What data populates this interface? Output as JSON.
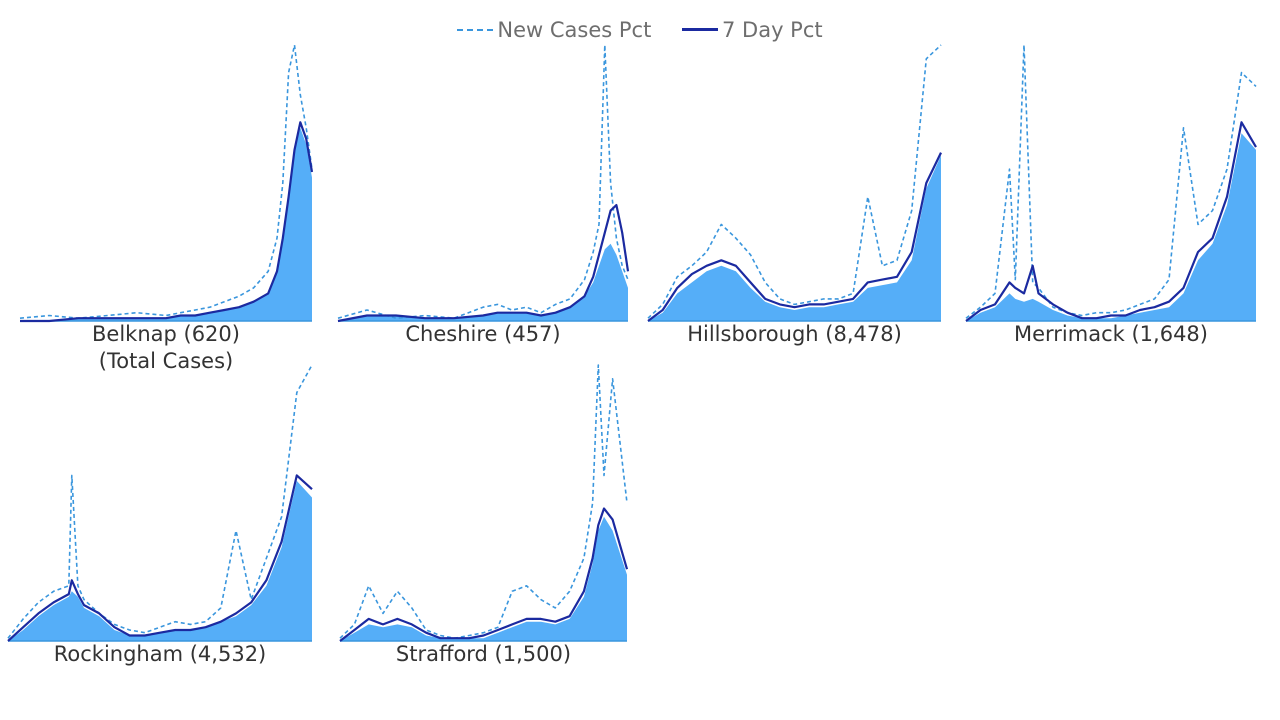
{
  "legend": {
    "new_cases_label": "New Cases Pct",
    "seven_day_label": "7 Day Pct"
  },
  "colors": {
    "area": "#55aef8",
    "new_cases_line": "#3a96dd",
    "seven_day_line": "#1b2aa0"
  },
  "chart_data": [
    {
      "type": "area",
      "county": "Belknap (620)",
      "subtitle": "(Total Cases)",
      "title": "",
      "xlabel": "",
      "ylabel": "",
      "x": [
        0,
        10,
        20,
        30,
        40,
        50,
        55,
        60,
        65,
        70,
        75,
        80,
        85,
        88,
        90,
        92,
        94,
        96,
        98,
        100
      ],
      "series": [
        {
          "name": "New Cases Pct",
          "values": [
            0.01,
            0.02,
            0.01,
            0.02,
            0.03,
            0.02,
            0.03,
            0.04,
            0.05,
            0.07,
            0.09,
            0.12,
            0.18,
            0.3,
            0.5,
            0.9,
            1.0,
            0.82,
            0.7,
            0.55
          ]
        },
        {
          "name": "7 Day Pct",
          "values": [
            0.0,
            0.0,
            0.01,
            0.01,
            0.01,
            0.01,
            0.02,
            0.02,
            0.03,
            0.04,
            0.05,
            0.07,
            0.1,
            0.18,
            0.3,
            0.45,
            0.62,
            0.72,
            0.66,
            0.54
          ]
        }
      ],
      "area_values": [
        0.0,
        0.0,
        0.01,
        0.01,
        0.01,
        0.01,
        0.02,
        0.02,
        0.03,
        0.04,
        0.05,
        0.07,
        0.1,
        0.18,
        0.3,
        0.45,
        0.62,
        0.7,
        0.64,
        0.52
      ],
      "ylim": [
        0,
        1
      ]
    },
    {
      "type": "area",
      "county": "Cheshire (457)",
      "title": "",
      "xlabel": "",
      "ylabel": "",
      "x": [
        0,
        10,
        20,
        30,
        40,
        50,
        55,
        60,
        65,
        70,
        75,
        80,
        85,
        88,
        90,
        92,
        94,
        96,
        98,
        100
      ],
      "series": [
        {
          "name": "New Cases Pct",
          "values": [
            0.01,
            0.04,
            0.01,
            0.02,
            0.01,
            0.05,
            0.06,
            0.04,
            0.05,
            0.03,
            0.06,
            0.08,
            0.15,
            0.25,
            0.35,
            1.0,
            0.5,
            0.3,
            0.2,
            0.15
          ]
        },
        {
          "name": "7 Day Pct",
          "values": [
            0.0,
            0.02,
            0.02,
            0.01,
            0.01,
            0.02,
            0.03,
            0.03,
            0.03,
            0.02,
            0.03,
            0.05,
            0.09,
            0.16,
            0.24,
            0.32,
            0.4,
            0.42,
            0.32,
            0.18
          ]
        }
      ],
      "area_values": [
        0.0,
        0.02,
        0.02,
        0.01,
        0.01,
        0.02,
        0.03,
        0.03,
        0.03,
        0.02,
        0.03,
        0.05,
        0.09,
        0.14,
        0.2,
        0.26,
        0.28,
        0.24,
        0.18,
        0.12
      ],
      "ylim": [
        0,
        1
      ]
    },
    {
      "type": "area",
      "county": "Hillsborough (8,478)",
      "title": "",
      "xlabel": "",
      "ylabel": "",
      "x": [
        0,
        5,
        10,
        15,
        20,
        25,
        30,
        35,
        40,
        45,
        50,
        55,
        60,
        65,
        70,
        75,
        80,
        85,
        90,
        95,
        100
      ],
      "series": [
        {
          "name": "New Cases Pct",
          "values": [
            0.01,
            0.06,
            0.16,
            0.2,
            0.25,
            0.35,
            0.3,
            0.24,
            0.14,
            0.08,
            0.06,
            0.07,
            0.08,
            0.08,
            0.1,
            0.45,
            0.2,
            0.22,
            0.4,
            0.95,
            1.0
          ]
        },
        {
          "name": "7 Day Pct",
          "values": [
            0.0,
            0.04,
            0.12,
            0.17,
            0.2,
            0.22,
            0.2,
            0.14,
            0.08,
            0.06,
            0.05,
            0.06,
            0.06,
            0.07,
            0.08,
            0.14,
            0.15,
            0.16,
            0.25,
            0.5,
            0.61
          ]
        }
      ],
      "area_values": [
        0.0,
        0.03,
        0.1,
        0.14,
        0.18,
        0.2,
        0.18,
        0.12,
        0.07,
        0.05,
        0.04,
        0.05,
        0.05,
        0.06,
        0.07,
        0.12,
        0.13,
        0.14,
        0.22,
        0.48,
        0.6
      ],
      "ylim": [
        0,
        1
      ]
    },
    {
      "type": "area",
      "county": "Merrimack (1,648)",
      "title": "",
      "xlabel": "",
      "ylabel": "",
      "x": [
        0,
        5,
        10,
        15,
        17,
        20,
        23,
        25,
        30,
        35,
        40,
        45,
        50,
        55,
        60,
        65,
        70,
        75,
        80,
        85,
        90,
        95,
        100
      ],
      "series": [
        {
          "name": "New Cases Pct",
          "values": [
            0.01,
            0.05,
            0.1,
            0.55,
            0.15,
            1.0,
            0.14,
            0.12,
            0.05,
            0.03,
            0.02,
            0.03,
            0.03,
            0.04,
            0.06,
            0.08,
            0.15,
            0.7,
            0.35,
            0.4,
            0.55,
            0.9,
            0.85
          ]
        },
        {
          "name": "7 Day Pct",
          "values": [
            0.0,
            0.04,
            0.06,
            0.14,
            0.12,
            0.1,
            0.2,
            0.1,
            0.06,
            0.03,
            0.01,
            0.01,
            0.02,
            0.02,
            0.04,
            0.05,
            0.07,
            0.12,
            0.25,
            0.3,
            0.45,
            0.72,
            0.63
          ]
        }
      ],
      "area_values": [
        0.0,
        0.03,
        0.05,
        0.1,
        0.08,
        0.07,
        0.08,
        0.07,
        0.04,
        0.02,
        0.01,
        0.01,
        0.01,
        0.02,
        0.03,
        0.04,
        0.05,
        0.1,
        0.22,
        0.28,
        0.42,
        0.68,
        0.62
      ],
      "ylim": [
        0,
        1
      ]
    },
    {
      "type": "area",
      "county": "Rockingham (4,532)",
      "title": "",
      "xlabel": "",
      "ylabel": "",
      "x": [
        0,
        5,
        10,
        15,
        20,
        21,
        23,
        25,
        30,
        35,
        40,
        45,
        50,
        55,
        60,
        65,
        70,
        75,
        80,
        85,
        90,
        95,
        100
      ],
      "series": [
        {
          "name": "New Cases Pct",
          "values": [
            0.01,
            0.08,
            0.14,
            0.18,
            0.2,
            0.6,
            0.2,
            0.15,
            0.1,
            0.06,
            0.04,
            0.03,
            0.05,
            0.07,
            0.06,
            0.07,
            0.12,
            0.4,
            0.15,
            0.3,
            0.45,
            0.9,
            1.0
          ]
        },
        {
          "name": "7 Day Pct",
          "values": [
            0.0,
            0.05,
            0.1,
            0.14,
            0.17,
            0.22,
            0.17,
            0.13,
            0.1,
            0.05,
            0.02,
            0.02,
            0.03,
            0.04,
            0.04,
            0.05,
            0.07,
            0.1,
            0.14,
            0.22,
            0.36,
            0.6,
            0.55
          ]
        }
      ],
      "area_values": [
        0.0,
        0.04,
        0.09,
        0.13,
        0.16,
        0.18,
        0.16,
        0.12,
        0.09,
        0.04,
        0.02,
        0.02,
        0.03,
        0.04,
        0.04,
        0.05,
        0.07,
        0.09,
        0.13,
        0.2,
        0.34,
        0.58,
        0.52
      ],
      "ylim": [
        0,
        1
      ]
    },
    {
      "type": "area",
      "county": "Strafford (1,500)",
      "title": "",
      "xlabel": "",
      "ylabel": "",
      "x": [
        0,
        5,
        10,
        15,
        20,
        25,
        30,
        35,
        40,
        45,
        50,
        55,
        60,
        65,
        70,
        75,
        80,
        85,
        88,
        90,
        92,
        95,
        100
      ],
      "series": [
        {
          "name": "New Cases Pct",
          "values": [
            0.01,
            0.06,
            0.2,
            0.1,
            0.18,
            0.12,
            0.04,
            0.02,
            0.01,
            0.02,
            0.03,
            0.05,
            0.18,
            0.2,
            0.15,
            0.12,
            0.18,
            0.3,
            0.5,
            1.0,
            0.6,
            0.95,
            0.5
          ]
        },
        {
          "name": "7 Day Pct",
          "values": [
            0.0,
            0.04,
            0.08,
            0.06,
            0.08,
            0.06,
            0.03,
            0.01,
            0.01,
            0.01,
            0.02,
            0.04,
            0.06,
            0.08,
            0.08,
            0.07,
            0.09,
            0.18,
            0.3,
            0.42,
            0.48,
            0.44,
            0.26
          ]
        }
      ],
      "area_values": [
        0.0,
        0.03,
        0.06,
        0.05,
        0.06,
        0.05,
        0.02,
        0.01,
        0.01,
        0.01,
        0.01,
        0.03,
        0.05,
        0.07,
        0.07,
        0.06,
        0.08,
        0.16,
        0.28,
        0.4,
        0.45,
        0.4,
        0.24
      ],
      "ylim": [
        0,
        1
      ]
    }
  ]
}
